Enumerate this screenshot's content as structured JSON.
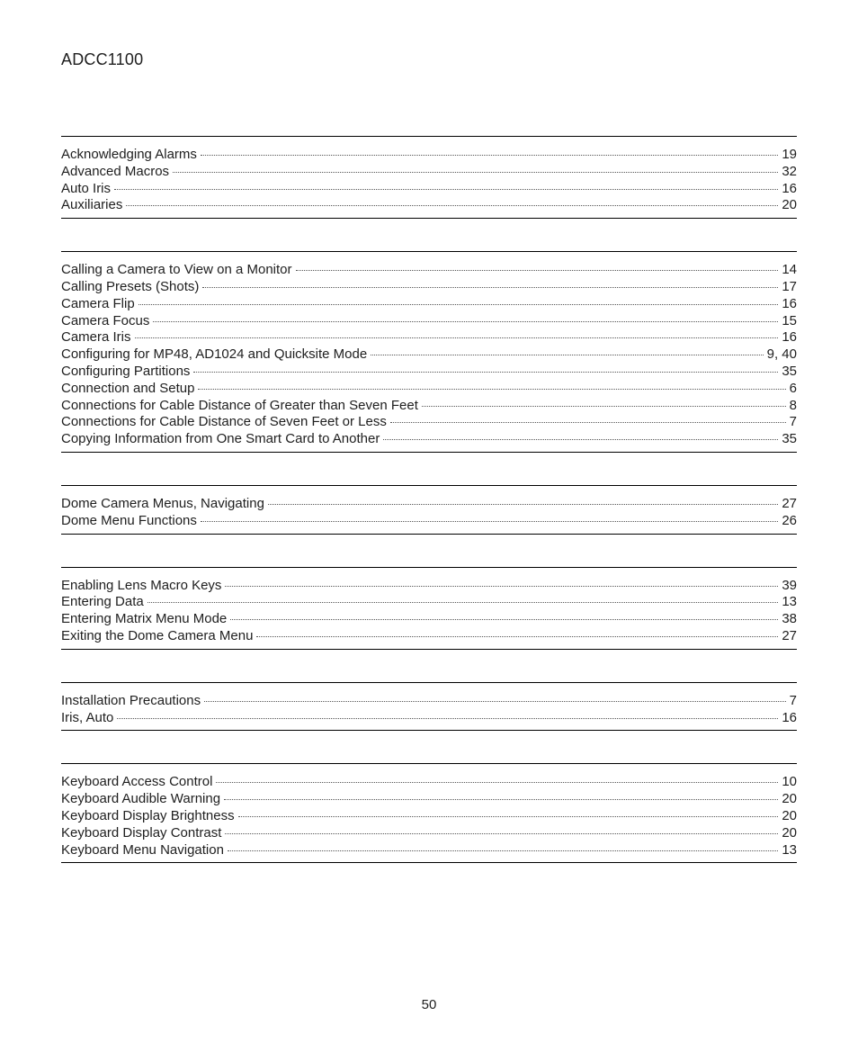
{
  "header": {
    "title": "ADCC1100"
  },
  "page_number": "50",
  "sections": [
    {
      "entries": [
        {
          "title": "Acknowledging Alarms",
          "page": "19"
        },
        {
          "title": "Advanced Macros",
          "page": "32"
        },
        {
          "title": "Auto Iris",
          "page": "16"
        },
        {
          "title": "Auxiliaries",
          "page": "20"
        }
      ]
    },
    {
      "entries": [
        {
          "title": "Calling a Camera to View on a Monitor",
          "page": "14"
        },
        {
          "title": "Calling Presets (Shots)",
          "page": "17"
        },
        {
          "title": "Camera Flip",
          "page": "16"
        },
        {
          "title": "Camera Focus",
          "page": "15"
        },
        {
          "title": "Camera Iris",
          "page": "16"
        },
        {
          "title": "Configuring for MP48, AD1024 and Quicksite Mode",
          "page": "9,  40"
        },
        {
          "title": "Configuring Partitions",
          "page": "35"
        },
        {
          "title": "Connection and Setup",
          "page": "6"
        },
        {
          "title": "Connections for Cable Distance of Greater than Seven Feet",
          "page": "8"
        },
        {
          "title": "Connections for Cable Distance of Seven Feet or Less",
          "page": "7"
        },
        {
          "title": "Copying Information from One Smart Card to Another",
          "page": "35"
        }
      ]
    },
    {
      "entries": [
        {
          "title": "Dome Camera Menus, Navigating",
          "page": "27"
        },
        {
          "title": "Dome Menu Functions",
          "page": "26"
        }
      ]
    },
    {
      "entries": [
        {
          "title": "Enabling Lens Macro Keys",
          "page": "39"
        },
        {
          "title": "Entering Data",
          "page": "13"
        },
        {
          "title": "Entering Matrix Menu Mode",
          "page": "38"
        },
        {
          "title": "Exiting the Dome Camera Menu",
          "page": "27"
        }
      ]
    },
    {
      "entries": [
        {
          "title": "Installation Precautions",
          "page": "7"
        },
        {
          "title": "Iris, Auto",
          "page": "16"
        }
      ]
    },
    {
      "entries": [
        {
          "title": "Keyboard Access Control",
          "page": "10"
        },
        {
          "title": "Keyboard Audible Warning",
          "page": "20"
        },
        {
          "title": "Keyboard Display Brightness",
          "page": "20"
        },
        {
          "title": "Keyboard Display Contrast",
          "page": "20"
        },
        {
          "title": "Keyboard Menu Navigation",
          "page": "13"
        }
      ]
    }
  ]
}
